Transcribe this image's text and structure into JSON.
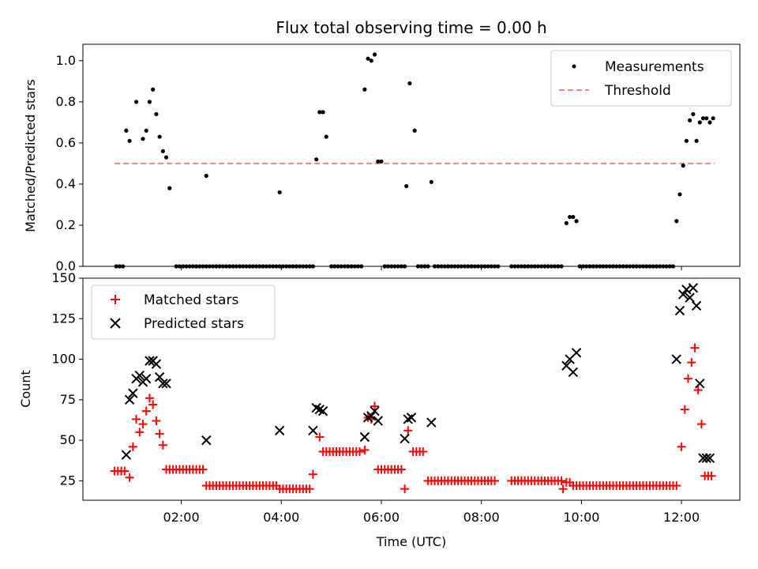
{
  "chart_data": [
    {
      "type": "scatter",
      "title": "Flux total observing time = 0.00 h",
      "xlabel": "",
      "ylabel": "Matched/Predicted stars",
      "ylim": [
        0,
        1.08
      ],
      "yticks": [
        "0.0",
        "0.2",
        "0.4",
        "0.6",
        "0.8",
        "1.0"
      ],
      "ytick_values": [
        0,
        0.2,
        0.4,
        0.6,
        0.8,
        1.0
      ],
      "legend_position": "top-right",
      "series": [
        {
          "name": "Measurements",
          "marker": "dot",
          "color": "#000000",
          "x": [
            "00:42",
            "00:46",
            "00:50",
            "00:54",
            "00:58",
            "01:06",
            "01:14",
            "01:18",
            "01:22",
            "01:26",
            "01:30",
            "01:34",
            "01:38",
            "01:42",
            "01:46",
            "02:30",
            "03:58",
            "04:42",
            "04:46",
            "04:50",
            "04:54",
            "05:40",
            "05:44",
            "05:48",
            "05:52",
            "05:56",
            "06:00",
            "06:30",
            "06:34",
            "06:40",
            "07:00",
            "09:42",
            "09:46",
            "09:50",
            "09:54",
            "11:54",
            "11:58",
            "12:02",
            "12:06",
            "12:10",
            "12:14",
            "12:18",
            "12:22",
            "12:26",
            "12:30",
            "12:34",
            "12:38"
          ],
          "y": [
            0,
            0,
            0,
            0.66,
            0.61,
            0.8,
            0.62,
            0.66,
            0.8,
            0.86,
            0.74,
            0.63,
            0.56,
            0.53,
            0.38,
            0.44,
            0.36,
            0.52,
            0.75,
            0.75,
            0.63,
            0.86,
            1.01,
            1.0,
            1.03,
            0.51,
            0.51,
            0.39,
            0.89,
            0.66,
            0.41,
            0.21,
            0.24,
            0.24,
            0.22,
            0.22,
            0.35,
            0.49,
            0.61,
            0.71,
            0.74,
            0.61,
            0.7,
            0.72,
            0.72,
            0.7,
            0.72
          ]
        },
        {
          "name": "Threshold",
          "marker": "dashed-line",
          "color": "#ff7f7f",
          "x": [
            "00:40",
            "12:40"
          ],
          "y": [
            0.5,
            0.5
          ]
        }
      ],
      "zero_runs": [
        [
          "01:54",
          "02:30"
        ],
        [
          "02:34",
          "03:58"
        ],
        [
          "04:02",
          "04:38"
        ],
        [
          "05:00",
          "05:38"
        ],
        [
          "06:04",
          "06:28"
        ],
        [
          "06:44",
          "06:56"
        ],
        [
          "07:04",
          "08:20"
        ],
        [
          "08:36",
          "09:38"
        ],
        [
          "09:58",
          "11:52"
        ]
      ]
    },
    {
      "type": "scatter",
      "xlabel": "Time (UTC)",
      "ylabel": "Count",
      "ylim": [
        13,
        150
      ],
      "yticks": [
        "25",
        "50",
        "75",
        "100",
        "125",
        "150"
      ],
      "ytick_values": [
        25,
        50,
        75,
        100,
        125,
        150
      ],
      "xticks": [
        "02:00",
        "04:00",
        "06:00",
        "08:00",
        "10:00",
        "12:00"
      ],
      "xlim": [
        "00:02",
        "13:10"
      ],
      "legend_position": "top-left",
      "series": [
        {
          "name": "Matched stars",
          "marker": "plus",
          "color": "#ff0000",
          "x": [
            "00:58",
            "01:02",
            "01:06",
            "01:10",
            "01:14",
            "01:18",
            "01:22",
            "01:26",
            "01:30",
            "01:34",
            "01:38",
            "01:42",
            "01:46",
            "04:38",
            "04:46",
            "05:40",
            "05:44",
            "05:48",
            "05:52",
            "05:56",
            "06:28",
            "06:32",
            "12:00",
            "12:04",
            "12:08",
            "12:12",
            "12:16",
            "12:20",
            "12:24",
            "12:28",
            "12:32",
            "12:36"
          ],
          "y": [
            27,
            46,
            63,
            55,
            60,
            68,
            76,
            72,
            62,
            54,
            47,
            32,
            32,
            29,
            52,
            44,
            64,
            63,
            71,
            32,
            20,
            56,
            46,
            69,
            88,
            98,
            107,
            81,
            60,
            28,
            28,
            28
          ]
        },
        {
          "name": "Predicted stars",
          "marker": "x",
          "color": "#000000",
          "x": [
            "00:54",
            "00:58",
            "01:02",
            "01:06",
            "01:10",
            "01:14",
            "01:18",
            "01:22",
            "01:26",
            "01:30",
            "01:34",
            "01:38",
            "01:42",
            "02:30",
            "03:58",
            "04:38",
            "04:42",
            "04:46",
            "04:50",
            "05:40",
            "05:44",
            "05:48",
            "05:52",
            "05:56",
            "06:28",
            "06:32",
            "06:36",
            "07:00",
            "09:42",
            "09:46",
            "09:50",
            "09:54",
            "11:54",
            "11:58",
            "12:02",
            "12:06",
            "12:10",
            "12:14",
            "12:18",
            "12:22",
            "12:26",
            "12:30",
            "12:34"
          ],
          "y": [
            41,
            75,
            79,
            88,
            90,
            86,
            88,
            99,
            99,
            97,
            89,
            85,
            85,
            50,
            56,
            56,
            70,
            69,
            68,
            52,
            64,
            65,
            68,
            62,
            51,
            63,
            64,
            61,
            96,
            100,
            92,
            104,
            100,
            130,
            140,
            143,
            138,
            144,
            133,
            85,
            39,
            39,
            39
          ]
        }
      ],
      "flat_runs": [
        {
          "from": "00:40",
          "to": "00:52",
          "y": 31
        },
        {
          "from": "01:46",
          "to": "02:26",
          "y": 32
        },
        {
          "from": "02:30",
          "to": "03:54",
          "y": 22
        },
        {
          "from": "03:58",
          "to": "04:34",
          "y": 20
        },
        {
          "from": "04:50",
          "to": "05:36",
          "y": 43
        },
        {
          "from": "06:00",
          "to": "06:26",
          "y": 32
        },
        {
          "from": "06:38",
          "to": "06:52",
          "y": 43
        },
        {
          "from": "06:56",
          "to": "08:18",
          "y": 25
        },
        {
          "from": "08:36",
          "to": "09:36",
          "y": 25
        },
        {
          "from": "09:38",
          "to": "09:38",
          "y": 20
        },
        {
          "from": "09:42",
          "to": "09:46",
          "y": 24
        },
        {
          "from": "09:50",
          "to": "11:54",
          "y": 22
        }
      ]
    }
  ]
}
